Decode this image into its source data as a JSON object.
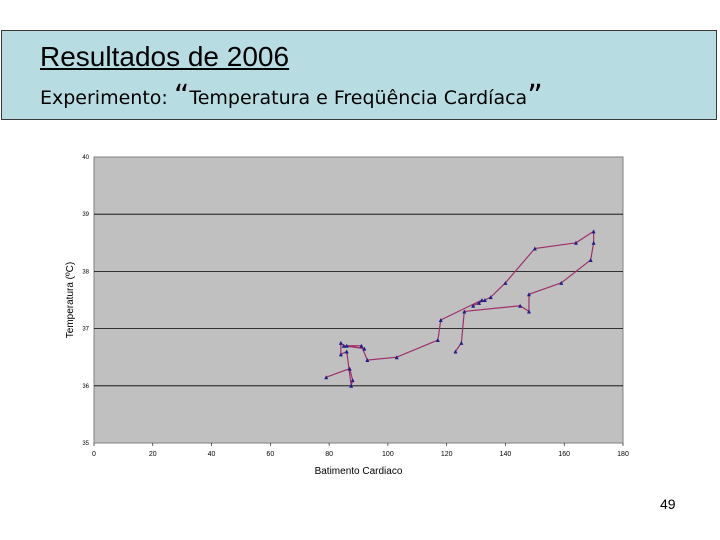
{
  "slide": {
    "title": "Resultados de 2006",
    "subtitle_label": "Experimento:",
    "open_quote": "“",
    "subtitle_text": "Temperatura e Freqüência Cardíaca",
    "close_quote": "”",
    "page_number": "49"
  },
  "colors": {
    "title_bg": "#b7dde3",
    "plot_bg": "#c0c0c0",
    "line": "#a0306a",
    "marker": "#1f1f8a"
  },
  "chart_data": {
    "type": "line",
    "title": "",
    "xlabel": "Batimento Cardiaco",
    "ylabel": "Temperatura (ºC)",
    "xlim": [
      0,
      180
    ],
    "ylim": [
      35,
      40
    ],
    "x_ticks": [
      "0",
      "20",
      "40",
      "60",
      "80",
      "100",
      "120",
      "140",
      "160",
      "180"
    ],
    "y_ticks": [
      "35",
      "36",
      "37",
      "38",
      "39",
      "40"
    ],
    "grid": "horizontal",
    "series": [
      {
        "points": [
          [
            79,
            36.15
          ],
          [
            87,
            36.3
          ],
          [
            88,
            36.1
          ],
          [
            87.5,
            36.0
          ],
          [
            86,
            36.6
          ],
          [
            84,
            36.55
          ],
          [
            84,
            36.75
          ],
          [
            85,
            36.7
          ],
          [
            92,
            36.65
          ],
          [
            86,
            36.7
          ],
          [
            91,
            36.7
          ],
          [
            93,
            36.45
          ],
          [
            103,
            36.5
          ],
          [
            117,
            36.8
          ],
          [
            118,
            37.15
          ],
          [
            132,
            37.5
          ],
          [
            131,
            37.45
          ],
          [
            129,
            37.4
          ],
          [
            133,
            37.5
          ],
          [
            135,
            37.55
          ],
          [
            140,
            37.8
          ],
          [
            150,
            38.4
          ],
          [
            164,
            38.5
          ],
          [
            170,
            38.7
          ],
          [
            170,
            38.5
          ],
          [
            169,
            38.2
          ],
          [
            159,
            37.8
          ],
          [
            148,
            37.6
          ],
          [
            148,
            37.3
          ],
          [
            145,
            37.4
          ],
          [
            126,
            37.3
          ],
          [
            125,
            36.75
          ],
          [
            123,
            36.6
          ]
        ]
      }
    ]
  }
}
